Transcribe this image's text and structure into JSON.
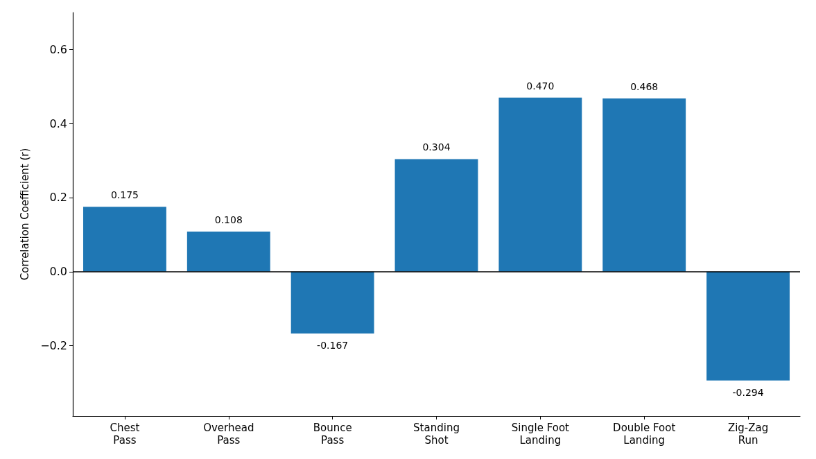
{
  "chart_data": {
    "type": "bar",
    "ylabel": "Correlation Coefficient (r)",
    "categories": [
      "Chest Pass",
      "Overhead Pass",
      "Bounce Pass",
      "Standing Shot",
      "Single Foot Landing",
      "Double Foot Landing",
      "Zig-Zag Run"
    ],
    "values": [
      0.175,
      0.108,
      -0.167,
      0.304,
      0.47,
      0.468,
      -0.294
    ],
    "value_labels": [
      "0.175",
      "0.108",
      "-0.167",
      "0.304",
      "0.470",
      "0.468",
      "-0.294"
    ],
    "color": "#1f77b4",
    "ylim": [
      -0.39,
      0.7
    ],
    "yticks": [
      {
        "value": -0.2,
        "label": "−0.2"
      },
      {
        "value": 0,
        "label": "0.0"
      },
      {
        "value": 0.2,
        "label": "0.2"
      },
      {
        "value": 0.4,
        "label": "0.4"
      },
      {
        "value": 0.6,
        "label": "0.6"
      }
    ],
    "ref_lines": [
      {
        "axis": "y",
        "value": 0,
        "color": "#000000",
        "line_style": "solid"
      }
    ],
    "grid": false
  }
}
